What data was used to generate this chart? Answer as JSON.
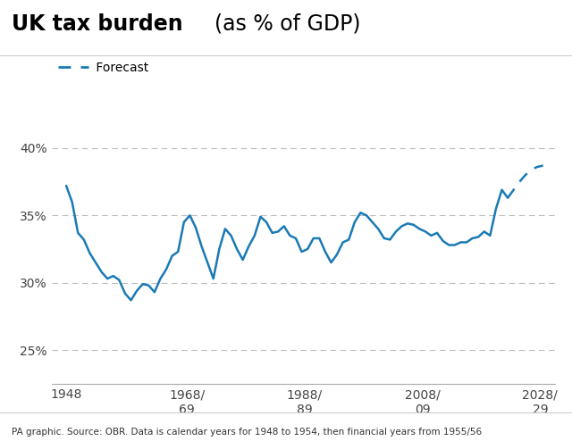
{
  "title_bold": "UK tax burden",
  "title_normal": "(as % of GDP)",
  "line_color": "#1a7ab5",
  "background_color": "#ffffff",
  "footer": "PA graphic. Source: OBR. Data is calendar years for 1948 to 1954, then financial years from 1955/56",
  "ylim": [
    22.5,
    41.5
  ],
  "yticks": [
    25,
    30,
    35,
    40
  ],
  "ytick_labels": [
    "25%",
    "30%",
    "35%",
    "40%"
  ],
  "xtick_positions": [
    1948,
    1968.5,
    1988.5,
    2008.5,
    2028.5
  ],
  "xtick_labels": [
    "1948",
    "1968/\n69",
    "1988/\n89",
    "2008/\n09",
    "2028/\n29"
  ],
  "solid_years": [
    1948,
    1949,
    1950,
    1951,
    1952,
    1953,
    1954,
    1955,
    1956,
    1957,
    1958,
    1959,
    1960,
    1961,
    1962,
    1963,
    1964,
    1965,
    1966,
    1967,
    1968,
    1969,
    1970,
    1971,
    1972,
    1973,
    1974,
    1975,
    1976,
    1977,
    1978,
    1979,
    1980,
    1981,
    1982,
    1983,
    1984,
    1985,
    1986,
    1987,
    1988,
    1989,
    1990,
    1991,
    1992,
    1993,
    1994,
    1995,
    1996,
    1997,
    1998,
    1999,
    2000,
    2001,
    2002,
    2003,
    2004,
    2005,
    2006,
    2007,
    2008,
    2009,
    2010,
    2011,
    2012,
    2013,
    2014,
    2015,
    2016,
    2017,
    2018,
    2019,
    2020,
    2021,
    2022,
    2023
  ],
  "solid_values": [
    37.2,
    36.0,
    33.7,
    33.2,
    32.2,
    31.5,
    30.8,
    30.3,
    30.5,
    30.2,
    29.2,
    28.7,
    29.4,
    29.9,
    29.8,
    29.3,
    30.3,
    31.0,
    32.0,
    32.3,
    34.5,
    35.0,
    34.1,
    32.7,
    31.5,
    30.3,
    32.5,
    34.0,
    33.5,
    32.5,
    31.7,
    32.7,
    33.5,
    34.9,
    34.5,
    33.7,
    33.8,
    34.2,
    33.5,
    33.3,
    32.3,
    32.5,
    33.3,
    33.3,
    32.3,
    31.5,
    32.1,
    33.0,
    33.2,
    34.5,
    35.2,
    35.0,
    34.5,
    34.0,
    33.3,
    33.2,
    33.8,
    34.2,
    34.4,
    34.3,
    34.0,
    33.8,
    33.5,
    33.7,
    33.1,
    32.8,
    32.8,
    33.0,
    33.0,
    33.3,
    33.4,
    33.8,
    33.5,
    35.5,
    36.9,
    36.3
  ],
  "dashed_years": [
    2023,
    2024,
    2025,
    2026,
    2027,
    2028,
    2029
  ],
  "dashed_values": [
    36.3,
    36.9,
    37.5,
    38.0,
    38.4,
    38.6,
    38.7
  ],
  "xlim": [
    1945.5,
    2031
  ]
}
